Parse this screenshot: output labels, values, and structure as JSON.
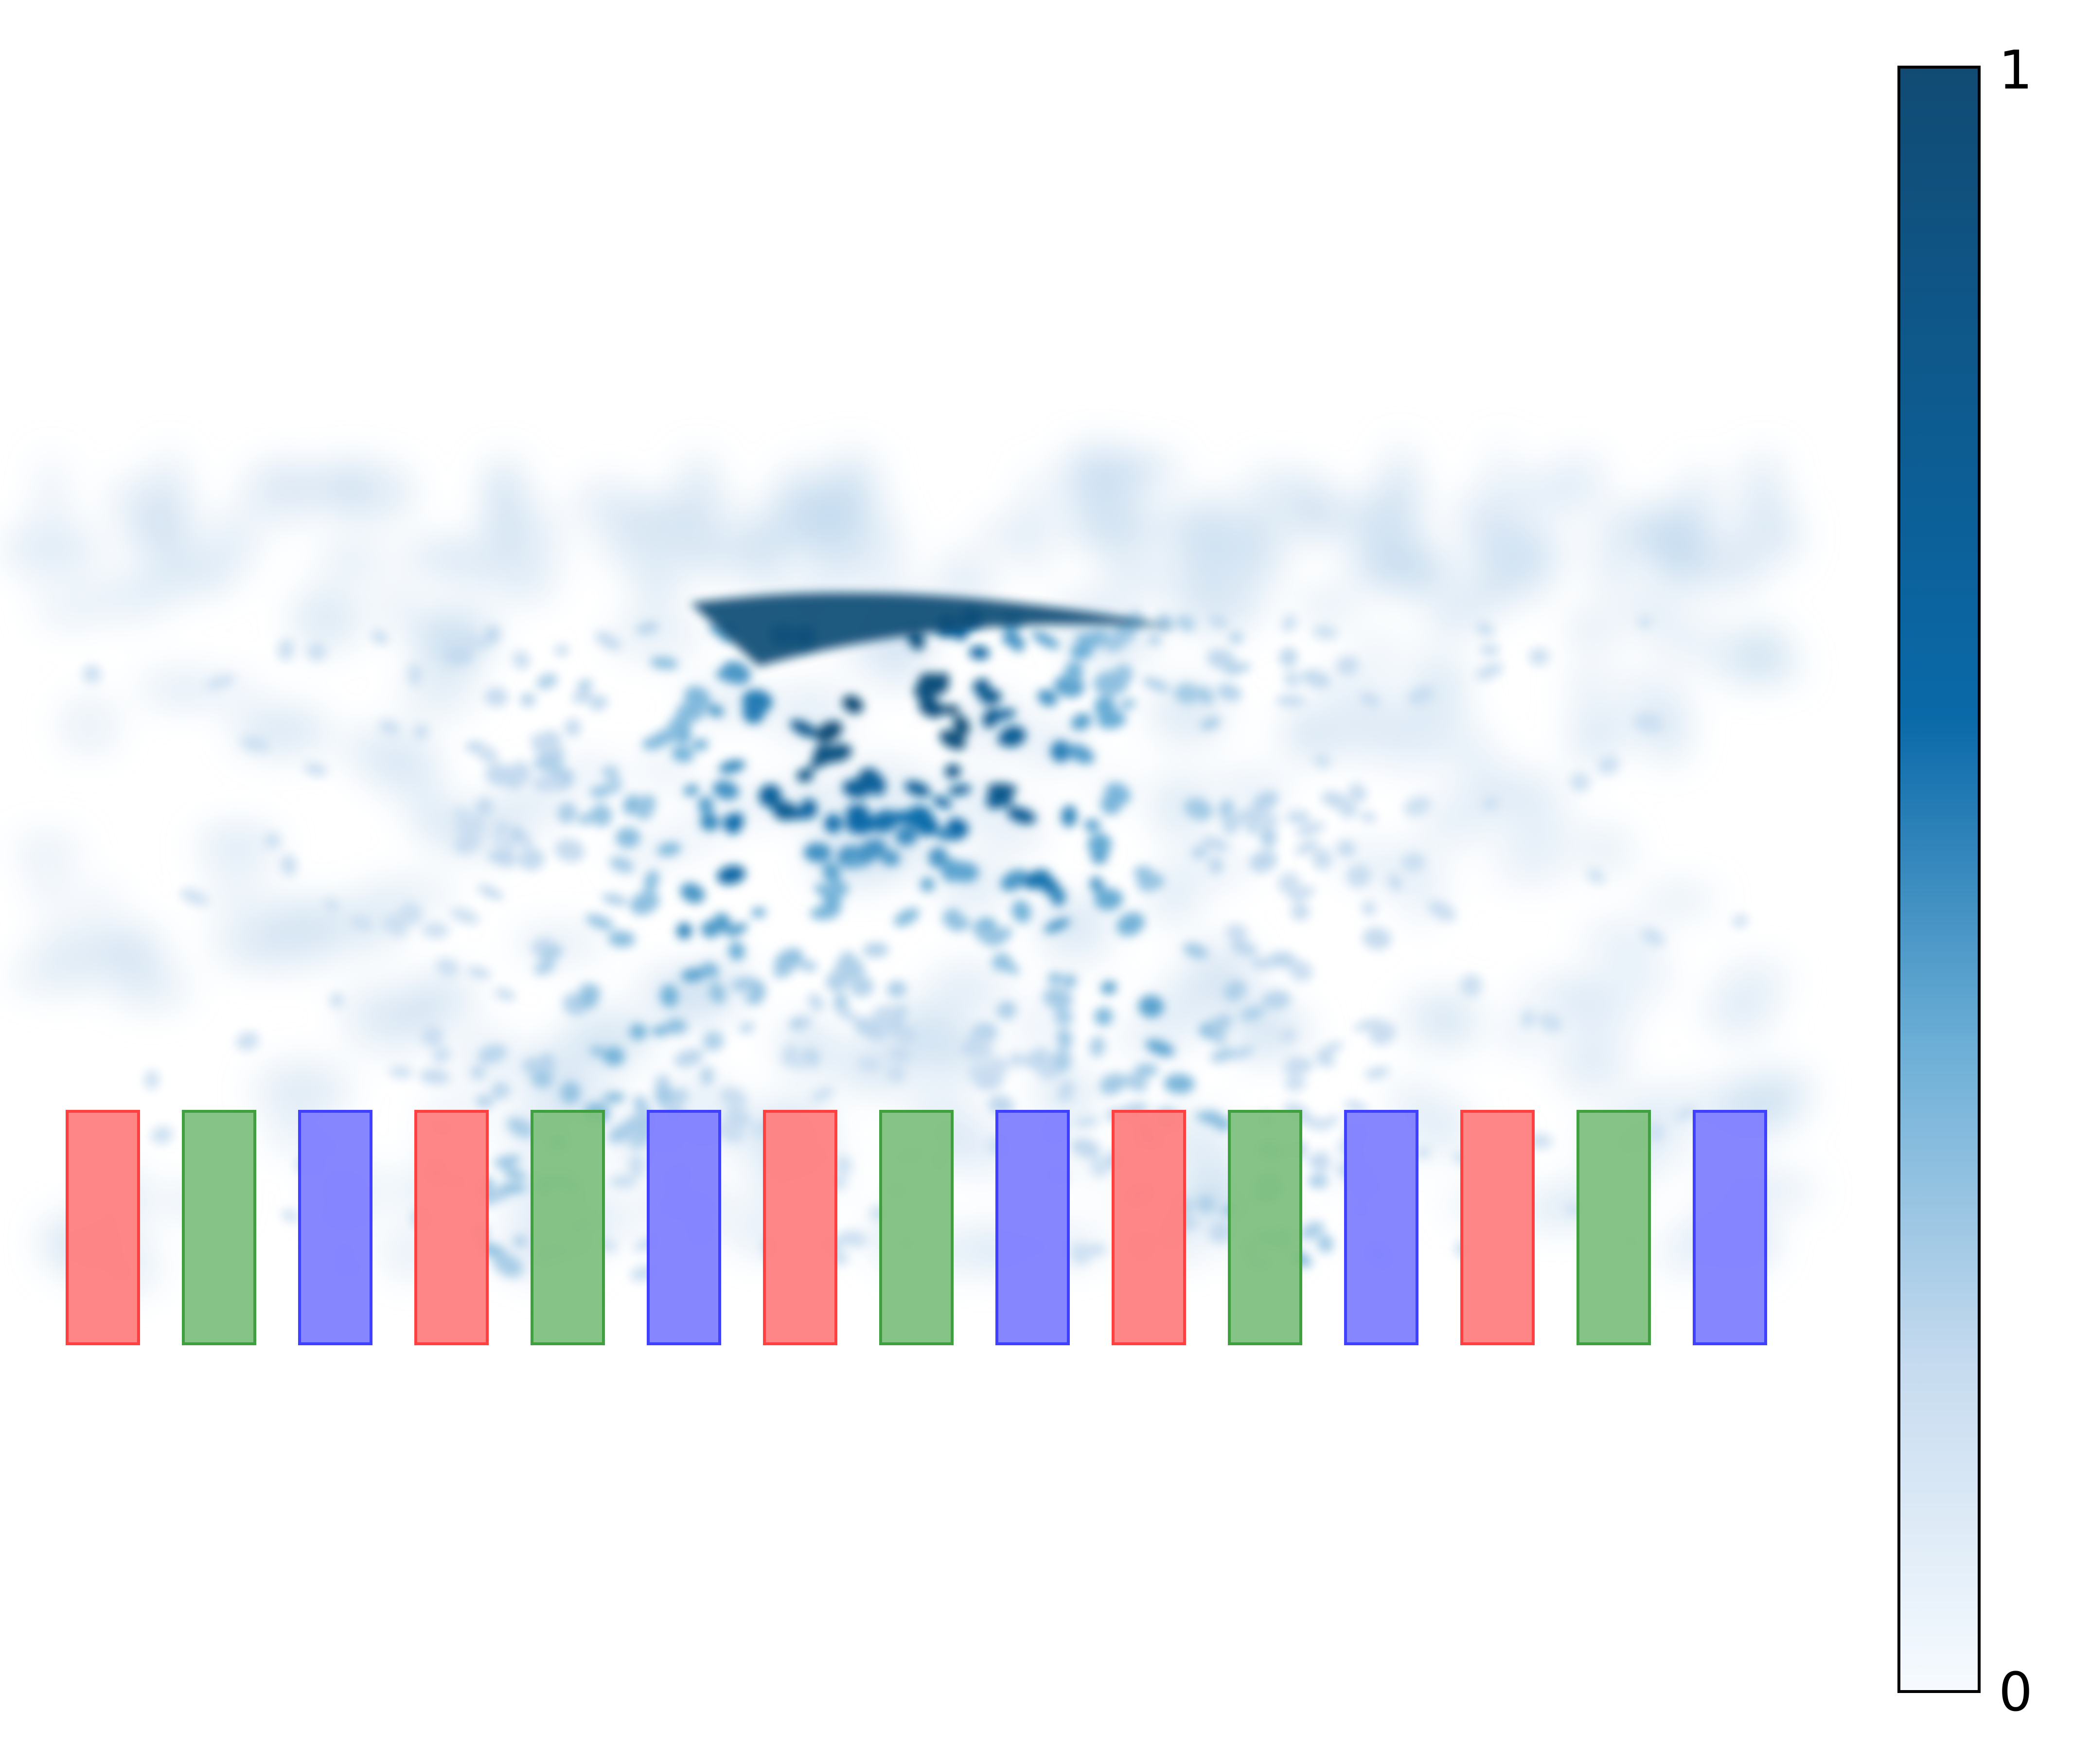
{
  "chart_data": {
    "type": "heatmap",
    "title": "",
    "xlabel": "",
    "ylabel": "",
    "axes_visible": false,
    "grid": false,
    "colorbar": {
      "position": "right",
      "orientation": "vertical",
      "min": 0,
      "max": 1,
      "tick_labels": [
        "0",
        "1"
      ],
      "colormap_stops": [
        {
          "value": 0.0,
          "color": "#f7fbff"
        },
        {
          "value": 0.2,
          "color": "#c6dbef"
        },
        {
          "value": 0.4,
          "color": "#6baed6"
        },
        {
          "value": 0.6,
          "color": "#0a69a8"
        },
        {
          "value": 1.0,
          "color": "#114b74"
        }
      ]
    },
    "blocks": {
      "count": 15,
      "color_cycle": [
        "red",
        "green",
        "blue"
      ],
      "fill_colors": {
        "red": "#ff8080",
        "green": "#80c080",
        "blue": "#8080ff"
      },
      "edge_colors": {
        "red": "#ff4040",
        "green": "#40a040",
        "blue": "#4040ff"
      }
    },
    "field_description_hotspot_value": 1.0
  }
}
